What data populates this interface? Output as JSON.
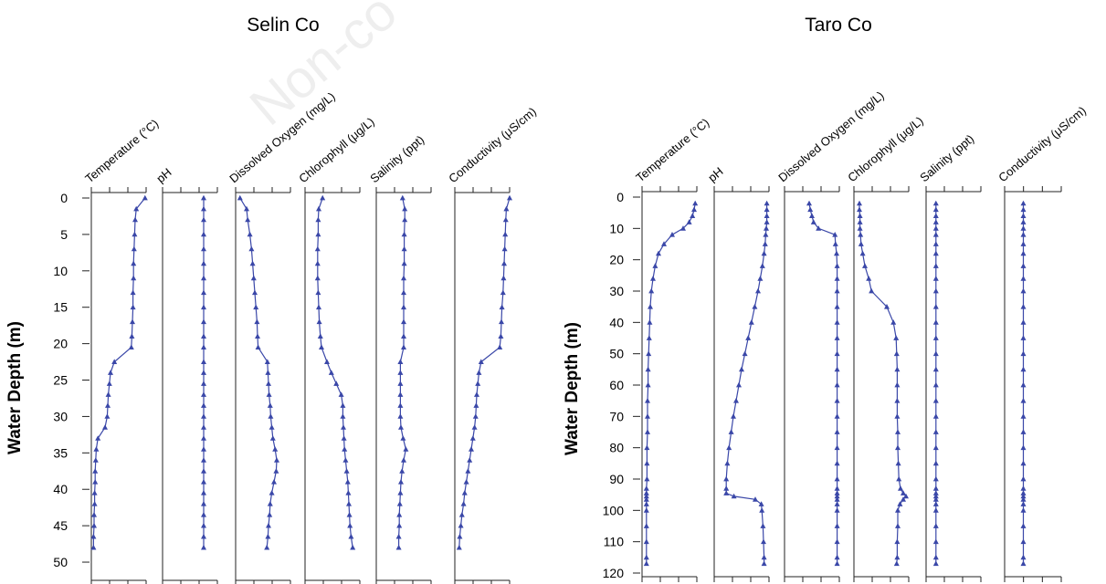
{
  "watermark": "Non-co",
  "marker_color": "#3a47a8",
  "ylabel": "Water Depth (m)",
  "parameters": [
    "Temperature (°C)",
    "pH",
    "Dissolved Oxygen (mg/L)",
    "Chlorophyll (μg/L)",
    "Salinity (ppt)",
    "Conductivity (μS/cm)"
  ],
  "chart_data": [
    {
      "type": "line",
      "title": "Selin Co",
      "ylabel": "Water Depth (m)",
      "y_inverted": true,
      "ylim": [
        0,
        52
      ],
      "yticks": [
        0,
        5,
        10,
        15,
        20,
        25,
        30,
        35,
        40,
        45,
        50
      ],
      "depth": [
        0,
        1.5,
        3,
        5,
        7,
        9,
        11,
        13,
        15,
        17,
        19,
        20.5,
        22.5,
        24,
        25.5,
        27,
        28.5,
        30,
        31.5,
        33,
        34.5,
        36,
        37.5,
        39,
        40.5,
        42,
        43.5,
        45,
        46.5,
        48
      ],
      "series": [
        {
          "name": "Temperature (°C)",
          "values": [
            0.98,
            0.82,
            0.8,
            0.79,
            0.78,
            0.77,
            0.77,
            0.76,
            0.76,
            0.75,
            0.74,
            0.73,
            0.42,
            0.35,
            0.33,
            0.31,
            0.3,
            0.29,
            0.25,
            0.12,
            0.09,
            0.08,
            0.07,
            0.07,
            0.06,
            0.06,
            0.05,
            0.05,
            0.04,
            0.04
          ]
        },
        {
          "name": "pH",
          "values": [
            0.75,
            0.75,
            0.75,
            0.75,
            0.75,
            0.75,
            0.75,
            0.75,
            0.75,
            0.75,
            0.75,
            0.75,
            0.75,
            0.75,
            0.75,
            0.75,
            0.75,
            0.75,
            0.75,
            0.75,
            0.75,
            0.75,
            0.75,
            0.75,
            0.75,
            0.75,
            0.75,
            0.75,
            0.75,
            0.75
          ]
        },
        {
          "name": "Dissolved Oxygen (mg/L)",
          "values": [
            0.08,
            0.2,
            0.22,
            0.26,
            0.29,
            0.31,
            0.33,
            0.35,
            0.37,
            0.39,
            0.4,
            0.41,
            0.58,
            0.59,
            0.6,
            0.61,
            0.63,
            0.64,
            0.66,
            0.68,
            0.72,
            0.75,
            0.74,
            0.7,
            0.66,
            0.63,
            0.62,
            0.6,
            0.59,
            0.57
          ]
        },
        {
          "name": "Chlorophyll (μg/L)",
          "values": [
            0.32,
            0.25,
            0.24,
            0.24,
            0.23,
            0.23,
            0.23,
            0.24,
            0.25,
            0.26,
            0.28,
            0.3,
            0.4,
            0.48,
            0.57,
            0.66,
            0.69,
            0.69,
            0.7,
            0.71,
            0.72,
            0.74,
            0.76,
            0.78,
            0.79,
            0.8,
            0.81,
            0.82,
            0.84,
            0.87
          ]
        },
        {
          "name": "Salinity (ppt)",
          "values": [
            0.48,
            0.52,
            0.52,
            0.51,
            0.51,
            0.51,
            0.5,
            0.5,
            0.5,
            0.5,
            0.5,
            0.5,
            0.44,
            0.44,
            0.44,
            0.44,
            0.44,
            0.44,
            0.45,
            0.49,
            0.54,
            0.5,
            0.47,
            0.45,
            0.44,
            0.43,
            0.42,
            0.42,
            0.41,
            0.41
          ]
        },
        {
          "name": "Conductivity (μS/cm)",
          "values": [
            1.0,
            0.94,
            0.93,
            0.92,
            0.91,
            0.9,
            0.89,
            0.88,
            0.86,
            0.85,
            0.84,
            0.82,
            0.48,
            0.44,
            0.42,
            0.4,
            0.39,
            0.38,
            0.36,
            0.33,
            0.3,
            0.27,
            0.24,
            0.21,
            0.18,
            0.16,
            0.13,
            0.11,
            0.09,
            0.08
          ]
        }
      ]
    },
    {
      "type": "line",
      "title": "Taro Co",
      "ylabel": "Water Depth (m)",
      "y_inverted": true,
      "ylim": [
        0,
        120
      ],
      "yticks": [
        0,
        10,
        20,
        30,
        40,
        50,
        60,
        70,
        80,
        90,
        100,
        110,
        120
      ],
      "depth": [
        2,
        4,
        6,
        8,
        10,
        12,
        15,
        18,
        22,
        26,
        30,
        35,
        40,
        45,
        50,
        55,
        60,
        65,
        70,
        75,
        80,
        85,
        90,
        93,
        94.5,
        95.5,
        96.5,
        98,
        100,
        105,
        110,
        115,
        117
      ],
      "series": [
        {
          "name": "Temperature (°C)",
          "values": [
            0.97,
            0.95,
            0.92,
            0.86,
            0.75,
            0.55,
            0.4,
            0.3,
            0.24,
            0.2,
            0.17,
            0.15,
            0.14,
            0.13,
            0.12,
            0.11,
            0.11,
            0.1,
            0.1,
            0.1,
            0.09,
            0.09,
            0.09,
            0.08,
            0.08,
            0.08,
            0.08,
            0.08,
            0.08,
            0.08,
            0.08,
            0.08,
            0.08
          ]
        },
        {
          "name": "pH",
          "values": [
            0.96,
            0.96,
            0.96,
            0.96,
            0.95,
            0.94,
            0.93,
            0.91,
            0.88,
            0.84,
            0.8,
            0.74,
            0.68,
            0.62,
            0.56,
            0.5,
            0.45,
            0.4,
            0.35,
            0.31,
            0.27,
            0.24,
            0.22,
            0.22,
            0.22,
            0.36,
            0.75,
            0.86,
            0.87,
            0.89,
            0.9,
            0.91,
            0.91
          ]
        },
        {
          "name": "Dissolved Oxygen (mg/L)",
          "values": [
            0.45,
            0.47,
            0.5,
            0.53,
            0.62,
            0.92,
            0.93,
            0.95,
            0.96,
            0.96,
            0.96,
            0.96,
            0.96,
            0.96,
            0.96,
            0.96,
            0.96,
            0.96,
            0.96,
            0.96,
            0.96,
            0.96,
            0.96,
            0.96,
            0.96,
            0.96,
            0.96,
            0.96,
            0.96,
            0.96,
            0.96,
            0.96,
            0.96
          ]
        },
        {
          "name": "Chlorophyll (μg/L)",
          "values": [
            0.1,
            0.1,
            0.11,
            0.11,
            0.11,
            0.12,
            0.13,
            0.16,
            0.2,
            0.27,
            0.32,
            0.6,
            0.72,
            0.77,
            0.78,
            0.79,
            0.79,
            0.79,
            0.79,
            0.8,
            0.8,
            0.81,
            0.82,
            0.85,
            0.9,
            0.95,
            0.9,
            0.84,
            0.8,
            0.8,
            0.79,
            0.79,
            0.78
          ]
        },
        {
          "name": "Salinity (ppt)",
          "values": [
            0.18,
            0.18,
            0.18,
            0.18,
            0.18,
            0.18,
            0.18,
            0.18,
            0.18,
            0.18,
            0.18,
            0.18,
            0.18,
            0.18,
            0.18,
            0.18,
            0.18,
            0.18,
            0.18,
            0.18,
            0.18,
            0.18,
            0.18,
            0.18,
            0.18,
            0.18,
            0.18,
            0.18,
            0.18,
            0.18,
            0.18,
            0.18,
            0.18
          ]
        },
        {
          "name": "Conductivity (μS/cm)",
          "values": [
            0.33,
            0.33,
            0.33,
            0.33,
            0.33,
            0.33,
            0.33,
            0.33,
            0.33,
            0.33,
            0.33,
            0.33,
            0.33,
            0.33,
            0.33,
            0.33,
            0.33,
            0.33,
            0.33,
            0.33,
            0.33,
            0.33,
            0.33,
            0.33,
            0.33,
            0.33,
            0.33,
            0.33,
            0.33,
            0.33,
            0.33,
            0.33,
            0.33
          ]
        }
      ]
    }
  ]
}
